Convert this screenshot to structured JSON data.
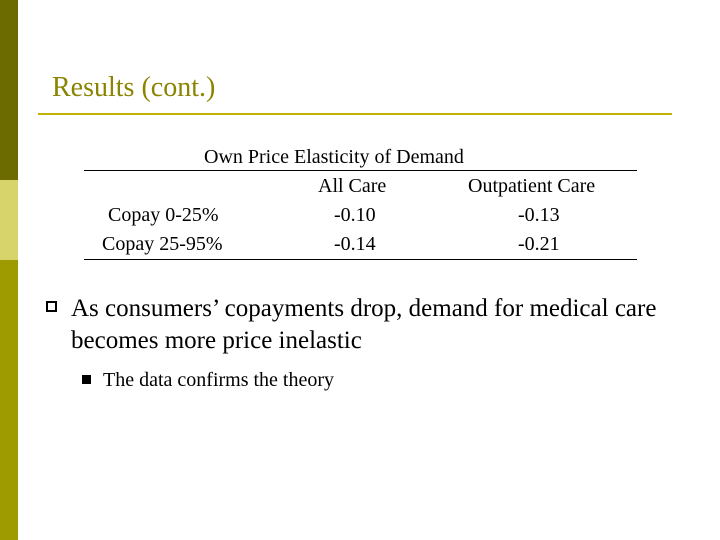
{
  "slide": {
    "title": "Results (cont.)"
  },
  "table": {
    "caption": "Own Price Elasticity of Demand",
    "columns": [
      "All Care",
      "Outpatient Care"
    ],
    "rows": [
      {
        "label": "Copay 0-25%",
        "all_care": "-0.10",
        "outpatient_care": "-0.13"
      },
      {
        "label": "Copay 25-95%",
        "all_care": "-0.14",
        "outpatient_care": "-0.21"
      }
    ]
  },
  "bullets": [
    {
      "text": "As consumers’ copayments drop, demand for medical care becomes more price inelastic",
      "children": [
        {
          "text": "The data confirms the theory"
        }
      ]
    }
  ],
  "colors": {
    "title": "#8a8400",
    "title_rule": "#bdb300",
    "bar_top": "#6b6b00",
    "bar_mid": "#d6d46a",
    "bar_bottom": "#9e9b00"
  }
}
